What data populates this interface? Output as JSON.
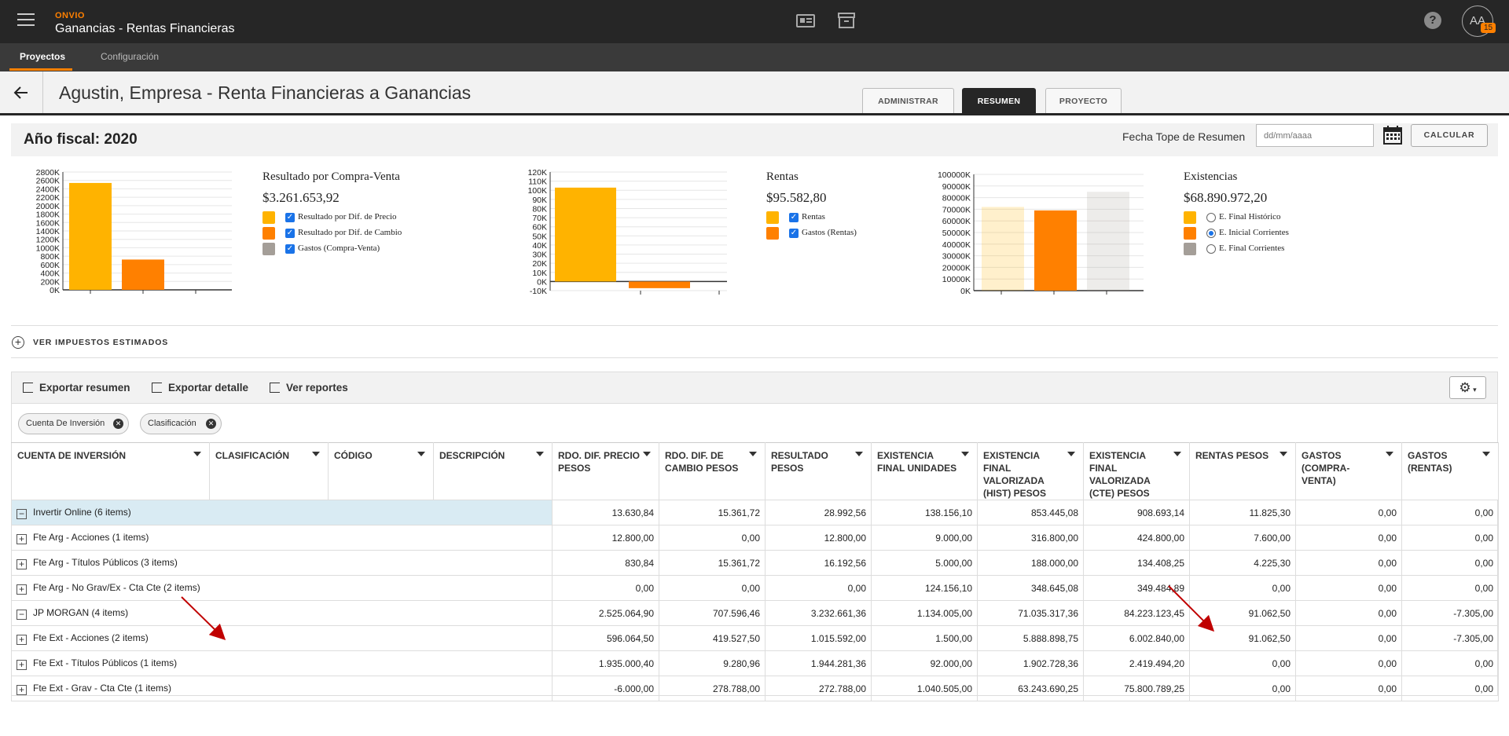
{
  "header": {
    "brand": "ONVIO",
    "app_title": "Ganancias - Rentas Financieras",
    "avatar_initials": "AA",
    "notification_count": "15",
    "icons": [
      "menu-icon",
      "contact-card-icon",
      "archive-icon",
      "help-icon"
    ]
  },
  "nav": {
    "items": [
      {
        "label": "Proyectos",
        "active": true
      },
      {
        "label": "Configuración",
        "active": false
      }
    ]
  },
  "page": {
    "title": "Agustin, Empresa - Renta Financieras a Ganancias",
    "tabs": [
      {
        "label": "ADMINISTRAR",
        "active": false
      },
      {
        "label": "RESUMEN",
        "active": true
      },
      {
        "label": "PROYECTO",
        "active": false
      }
    ]
  },
  "fiscal": {
    "year_label": "Año fiscal: 2020",
    "fecha_label": "Fecha Tope de Resumen",
    "fecha_placeholder": "dd/mm/aaaa",
    "calc_label": "CALCULAR"
  },
  "chart_data": [
    {
      "type": "bar",
      "title": "Resultado por Compra-Venta",
      "total": "$3.261.653,92",
      "ylim": [
        0,
        2800000
      ],
      "ticks": [
        "2800K",
        "2600K",
        "2400K",
        "2200K",
        "2000K",
        "1800K",
        "1600K",
        "1400K",
        "1200K",
        "1000K",
        "800K",
        "600K",
        "400K",
        "200K",
        "0K"
      ],
      "series": [
        {
          "name": "Resultado por Dif. de Precio",
          "color": "#ffb300",
          "value": 2540000,
          "selected": true
        },
        {
          "name": "Resultado por Dif. de Cambio",
          "color": "#ff8000",
          "value": 720000,
          "selected": true
        },
        {
          "name": "Gastos (Compra-Venta)",
          "color": "#a49e98",
          "value": 0,
          "selected": true
        }
      ],
      "control": "checkbox"
    },
    {
      "type": "bar",
      "title": "Rentas",
      "total": "$95.582,80",
      "ylim": [
        -10000,
        120000
      ],
      "ticks": [
        "120K",
        "110K",
        "100K",
        "90K",
        "80K",
        "70K",
        "60K",
        "50K",
        "40K",
        "30K",
        "20K",
        "10K",
        "0K",
        "-10K"
      ],
      "series": [
        {
          "name": "Rentas",
          "color": "#ffb300",
          "value": 102900,
          "selected": true
        },
        {
          "name": "Gastos (Rentas)",
          "color": "#ff8000",
          "value": -7300,
          "selected": true
        }
      ],
      "control": "checkbox"
    },
    {
      "type": "bar",
      "title": "Existencias",
      "total": "$68.890.972,20",
      "ylim": [
        0,
        100000000
      ],
      "ticks": [
        "100000K",
        "90000K",
        "80000K",
        "70000K",
        "60000K",
        "50000K",
        "40000K",
        "30000K",
        "20000K",
        "10000K",
        "0K"
      ],
      "series": [
        {
          "name": "E. Final Histórico",
          "color": "#ffb300",
          "value": 72000000,
          "selected": false
        },
        {
          "name": "E. Inicial Corrientes",
          "color": "#ff8000",
          "value": 69000000,
          "selected": true
        },
        {
          "name": "E. Final Corrientes",
          "color": "#a49e98",
          "value": 85000000,
          "selected": false
        }
      ],
      "control": "radio"
    }
  ],
  "impuestos": {
    "label": "VER IMPUESTOS ESTIMADOS"
  },
  "toolbar": {
    "export_summary": "Exportar resumen",
    "export_detail": "Exportar detalle",
    "view_reports": "Ver reportes"
  },
  "chips": [
    "Cuenta De Inversión",
    "Clasificación"
  ],
  "table": {
    "columns": [
      "CUENTA DE INVERSIÓN",
      "CLASIFICACIÓN",
      "CÓDIGO",
      "DESCRIPCIÓN",
      "RDO. DIF. PRECIO PESOS",
      "RDO. DIF. DE CAMBIO PESOS",
      "RESULTADO PESOS",
      "EXISTENCIA FINAL UNIDADES",
      "EXISTENCIA FINAL VALORIZADA (HIST) PESOS",
      "EXISTENCIA FINAL VALORIZADA (CTE) PESOS",
      "RENTAS PESOS",
      "GASTOS (COMPRA-VENTA)",
      "GASTOS (RENTAS)"
    ],
    "rows": [
      {
        "level": 1,
        "expander": "−",
        "label": "Invertir Online (6 items)",
        "selected": true,
        "values": [
          "13.630,84",
          "15.361,72",
          "28.992,56",
          "138.156,10",
          "853.445,08",
          "908.693,14",
          "11.825,30",
          "0,00",
          "0,00"
        ]
      },
      {
        "level": 2,
        "expander": "+",
        "label": "Fte Arg - Acciones (1 items)",
        "values": [
          "12.800,00",
          "0,00",
          "12.800,00",
          "9.000,00",
          "316.800,00",
          "424.800,00",
          "7.600,00",
          "0,00",
          "0,00"
        ]
      },
      {
        "level": 2,
        "expander": "+",
        "label": "Fte Arg - Títulos Públicos (3 items)",
        "values": [
          "830,84",
          "15.361,72",
          "16.192,56",
          "5.000,00",
          "188.000,00",
          "134.408,25",
          "4.225,30",
          "0,00",
          "0,00"
        ]
      },
      {
        "level": 2,
        "expander": "+",
        "label": "Fte Arg - No Grav/Ex - Cta Cte (2 items)",
        "values": [
          "0,00",
          "0,00",
          "0,00",
          "124.156,10",
          "348.645,08",
          "349.484,89",
          "0,00",
          "0,00",
          "0,00"
        ]
      },
      {
        "level": 1,
        "expander": "−",
        "label": "JP MORGAN (4 items)",
        "values": [
          "2.525.064,90",
          "707.596,46",
          "3.232.661,36",
          "1.134.005,00",
          "71.035.317,36",
          "84.223.123,45",
          "91.062,50",
          "0,00",
          "-7.305,00"
        ]
      },
      {
        "level": 2,
        "expander": "+",
        "label": "Fte Ext - Acciones (2 items)",
        "values": [
          "596.064,50",
          "419.527,50",
          "1.015.592,00",
          "1.500,00",
          "5.888.898,75",
          "6.002.840,00",
          "91.062,50",
          "0,00",
          "-7.305,00"
        ]
      },
      {
        "level": 2,
        "expander": "+",
        "label": "Fte Ext - Títulos Públicos (1 items)",
        "values": [
          "1.935.000,40",
          "9.280,96",
          "1.944.281,36",
          "92.000,00",
          "1.902.728,36",
          "2.419.494,20",
          "0,00",
          "0,00",
          "0,00"
        ]
      },
      {
        "level": 2,
        "expander": "+",
        "label": "Fte Ext - Grav - Cta Cte (1 items)",
        "values": [
          "-6.000,00",
          "278.788,00",
          "272.788,00",
          "1.040.505,00",
          "63.243.690,25",
          "75.800.789,25",
          "0,00",
          "0,00",
          "0,00"
        ]
      }
    ]
  },
  "annotation_color": "#c00000"
}
